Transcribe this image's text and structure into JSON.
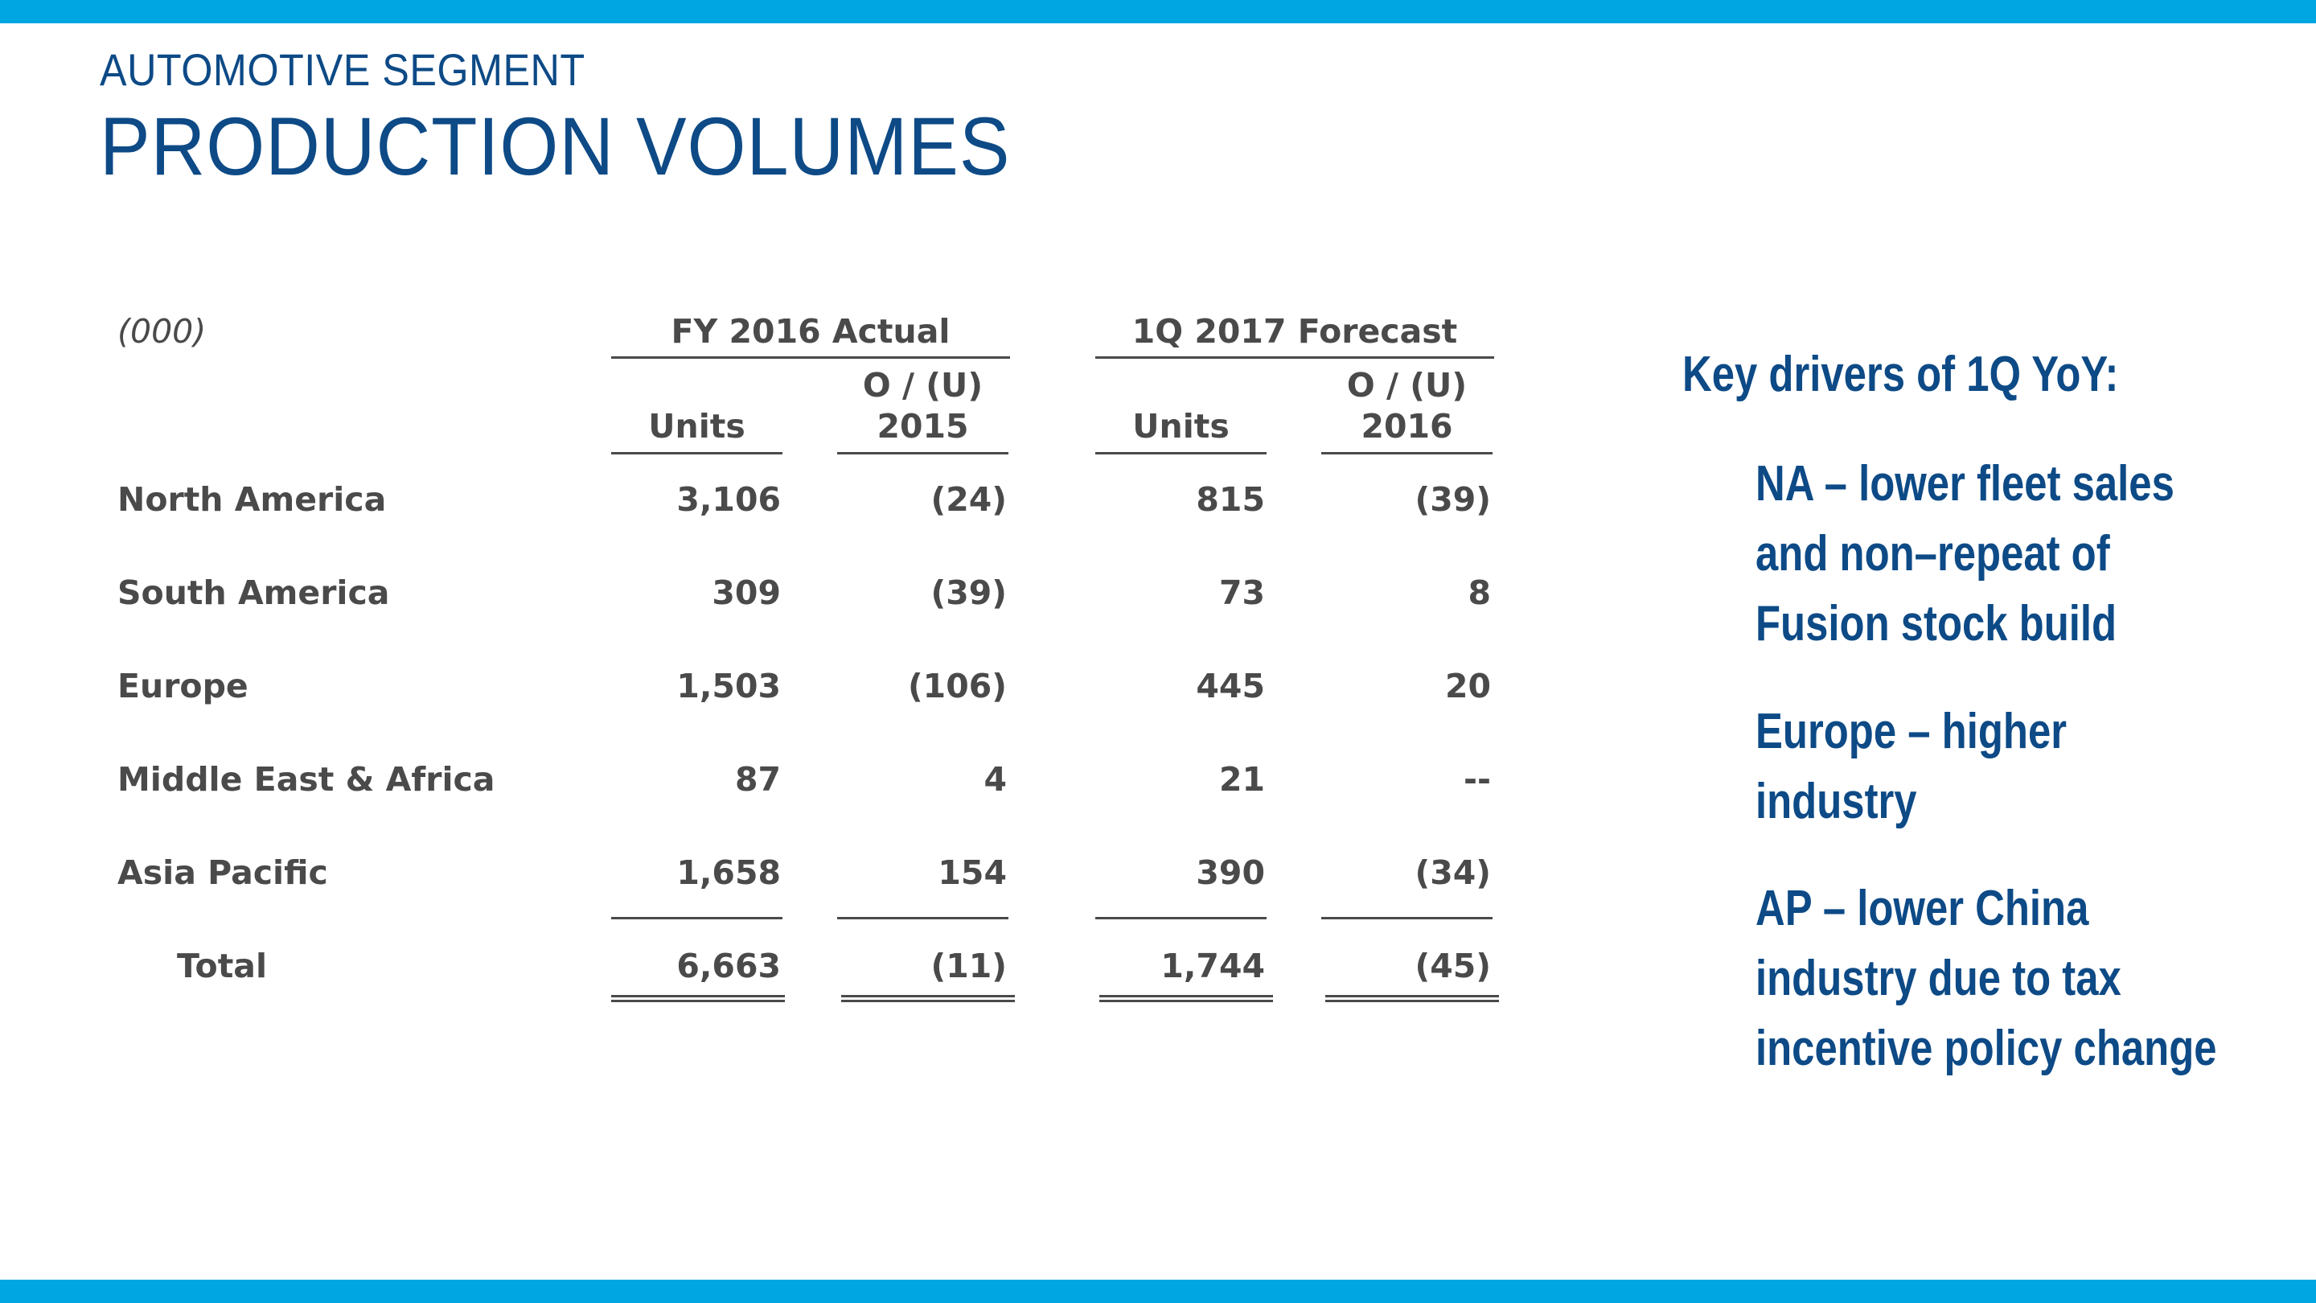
{
  "header": {
    "subtitle": "AUTOMOTIVE SEGMENT",
    "title": "PRODUCTION VOLUMES"
  },
  "table": {
    "unit_label": "(000)",
    "group_headers": [
      "FY 2016 Actual",
      "1Q 2017 Forecast"
    ],
    "col_headers": [
      {
        "line1": "",
        "line2": "Units"
      },
      {
        "line1": "O / (U)",
        "line2": "2015"
      },
      {
        "line1": "",
        "line2": "Units"
      },
      {
        "line1": "O / (U)",
        "line2": "2016"
      }
    ],
    "rows": [
      {
        "region": "North America",
        "cells": [
          "3,106",
          "(24)",
          "815",
          "(39)"
        ]
      },
      {
        "region": "South America",
        "cells": [
          "309",
          "(39)",
          "73",
          "8"
        ]
      },
      {
        "region": "Europe",
        "cells": [
          "1,503",
          "(106)",
          "445",
          "20"
        ]
      },
      {
        "region": "Middle East & Africa",
        "cells": [
          "87",
          "4",
          "21",
          "--"
        ]
      },
      {
        "region": "Asia Pacific",
        "cells": [
          "1,658",
          "154",
          "390",
          "(34)"
        ]
      }
    ],
    "total": {
      "label": "Total",
      "cells": [
        "6,663",
        "(11)",
        "1,744",
        "(45)"
      ]
    }
  },
  "drivers": {
    "heading": "Key drivers of 1Q YoY:",
    "items": [
      {
        "lines": [
          "NA – lower fleet sales",
          "and non–repeat of",
          "Fusion stock build"
        ]
      },
      {
        "lines": [
          "Europe – higher",
          "industry"
        ]
      },
      {
        "lines": [
          "AP – lower China",
          "industry due to tax",
          "incentive policy change"
        ]
      }
    ]
  },
  "colors": {
    "accent_bar": "#00a6e1",
    "brand_blue": "#0d4a86",
    "table_text": "#4a4a4a"
  }
}
